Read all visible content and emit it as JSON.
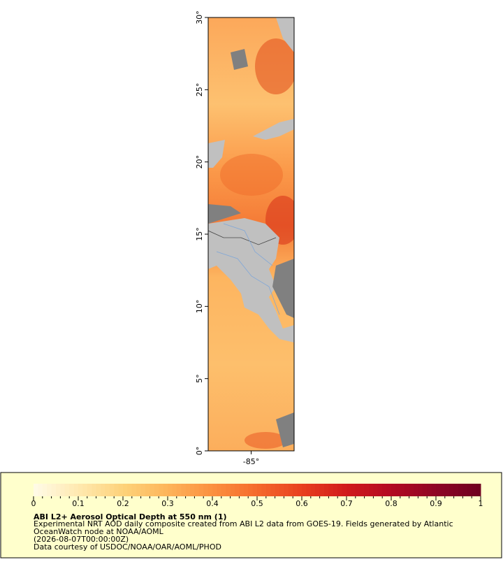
{
  "chart_data": {
    "type": "map",
    "title": "ABI L2+ Aerosol Optical Depth at 550 nm (1)",
    "description": [
      "Experimental NRT AOD daily composite created from ABI L2 data from GOES-19. Fields generated by Atlantic",
      "OceanWatch node at NOAA/AOML",
      "(2026-08-07T00:00:00Z)",
      "Data courtesy of USDOC/NOAA/OAR/AOML/PHOD"
    ],
    "ylim": [
      0,
      30
    ],
    "yticks": [
      {
        "value": 0,
        "label": "0°"
      },
      {
        "value": 5,
        "label": "5°"
      },
      {
        "value": 10,
        "label": "10°"
      },
      {
        "value": 15,
        "label": "15°"
      },
      {
        "value": 20,
        "label": "20°"
      },
      {
        "value": 25,
        "label": "25°"
      },
      {
        "value": 30,
        "label": "30°"
      }
    ],
    "xlim": [
      -88,
      -82
    ],
    "xticks": [
      {
        "value": -85,
        "label": "-85°"
      }
    ],
    "colorbar": {
      "lim": [
        0,
        1
      ],
      "ticks": [
        0,
        0.1,
        0.2,
        0.3,
        0.4,
        0.5,
        0.6,
        0.7,
        0.8,
        0.9,
        1
      ],
      "colors": [
        "#fffbe8",
        "#ffe9b0",
        "#fdd27a",
        "#fdb45a",
        "#fb9040",
        "#f56a2c",
        "#e8401f",
        "#d11a1c",
        "#b20a22",
        "#8e0525",
        "#6e0020"
      ]
    }
  }
}
